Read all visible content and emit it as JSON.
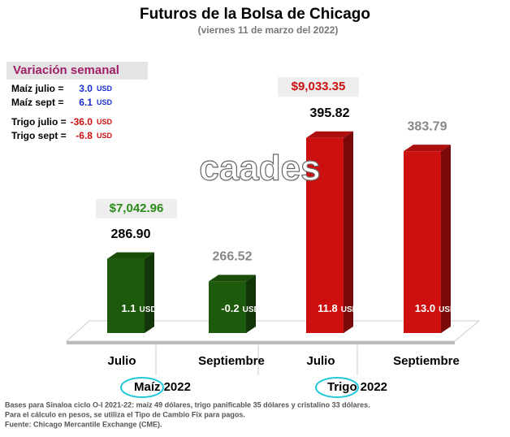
{
  "chart_data": {
    "type": "bar3d",
    "title": "Futuros de la Bolsa de Chicago",
    "subtitle": "(viernes 11 de marzo del 2022)",
    "watermark": "caades",
    "categories": [
      "Julio",
      "Septiembre",
      "Julio",
      "Septiembre"
    ],
    "values": [
      286.9,
      266.52,
      395.82,
      383.79
    ],
    "value_labels": [
      "286.90",
      "266.52",
      "395.82",
      "383.79"
    ],
    "colors": [
      "#1e5a0c",
      "#1e5a0c",
      "#cc1010",
      "#cc1010"
    ],
    "changes": [
      1.1,
      -0.2,
      11.8,
      13.0
    ],
    "change_labels": [
      "1.1",
      "-0.2",
      "11.8",
      "13.0"
    ],
    "unit": "USD",
    "ylim": [
      220,
      400
    ],
    "groups": [
      {
        "name": "Maíz",
        "year": "2022",
        "price": "$7,042.96",
        "price_color": "#2a8a1a"
      },
      {
        "name": "Trigo",
        "year": "2022",
        "price": "$9,033.35",
        "price_color": "#cc1010"
      }
    ],
    "weekly": {
      "title": "Variación semanal",
      "rows": [
        {
          "label": "Maíz julio  =",
          "value": 3.0,
          "value_label": "3.0",
          "color": "#1a2fd0"
        },
        {
          "label": "Maíz sept  =",
          "value": 6.1,
          "value_label": "6.1",
          "color": "#1a2fd0"
        },
        {
          "label": "Trigo julio =",
          "value": -36.0,
          "value_label": "-36.0",
          "color": "#cc1010"
        },
        {
          "label": "Trigo sept =",
          "value": -6.8,
          "value_label": "-6.8",
          "color": "#cc1010"
        }
      ]
    },
    "notes": [
      "Bases para Sinaloa ciclo O-I 2021-22: maíz 49 dólares, trigo panificable 35 dólares y cristalino 33 dólares.",
      "Para el cálculo en pesos, se utiliza el Tipo de Cambio Fix para pagos.",
      "Fuente: Chicago Mercantile Exchange (CME)."
    ]
  }
}
